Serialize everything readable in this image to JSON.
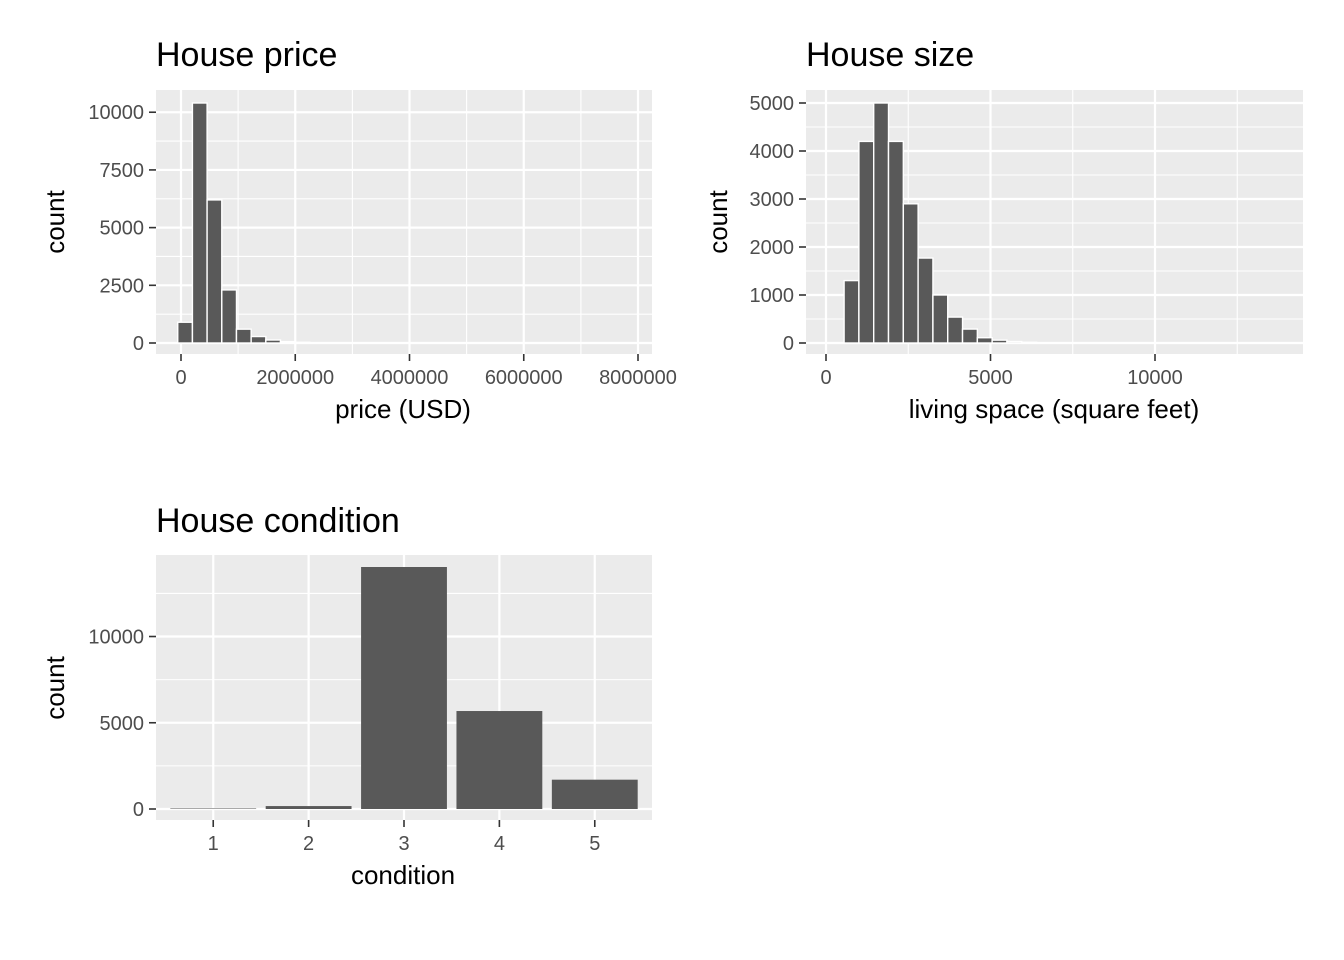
{
  "chart_data": [
    {
      "id": "price",
      "type": "bar",
      "title": "House price",
      "xlabel": "price (USD)",
      "ylabel": "count",
      "xlim": [
        -400000,
        8000000
      ],
      "ylim": [
        0,
        10400
      ],
      "x_ticks": [
        0,
        2000000,
        4000000,
        6000000,
        8000000
      ],
      "x_tick_labels": [
        "0",
        "2000000",
        "4000000",
        "6000000",
        "8000000"
      ],
      "y_ticks": [
        0,
        2500,
        5000,
        7500,
        10000
      ],
      "y_tick_labels": [
        "0",
        "2500",
        "5000",
        "7500",
        "10000"
      ],
      "grid": true,
      "bins": [
        {
          "x0": -57000,
          "x1": 200000,
          "count": 900
        },
        {
          "x0": 200000,
          "x1": 457000,
          "count": 10400
        },
        {
          "x0": 457000,
          "x1": 714000,
          "count": 6200
        },
        {
          "x0": 714000,
          "x1": 971000,
          "count": 2300
        },
        {
          "x0": 971000,
          "x1": 1228000,
          "count": 600
        },
        {
          "x0": 1228000,
          "x1": 1485000,
          "count": 280
        },
        {
          "x0": 1485000,
          "x1": 1742000,
          "count": 130
        },
        {
          "x0": 1742000,
          "x1": 1999000,
          "count": 60
        },
        {
          "x0": 1999000,
          "x1": 2256000,
          "count": 30
        },
        {
          "x0": 2256000,
          "x1": 2513000,
          "count": 15
        },
        {
          "x0": 2513000,
          "x1": 2770000,
          "count": 8
        },
        {
          "x0": 2770000,
          "x1": 3027000,
          "count": 5
        },
        {
          "x0": 3027000,
          "x1": 3284000,
          "count": 3
        },
        {
          "x0": 3284000,
          "x1": 3541000,
          "count": 2
        },
        {
          "x0": 3541000,
          "x1": 3798000,
          "count": 1
        },
        {
          "x0": 3798000,
          "x1": 4055000,
          "count": 1
        },
        {
          "x0": 4055000,
          "x1": 4312000,
          "count": 1
        },
        {
          "x0": 4312000,
          "x1": 4569000,
          "count": 1
        },
        {
          "x0": 4569000,
          "x1": 4826000,
          "count": 0
        },
        {
          "x0": 4826000,
          "x1": 5083000,
          "count": 1
        },
        {
          "x0": 5083000,
          "x1": 5340000,
          "count": 1
        },
        {
          "x0": 5340000,
          "x1": 5597000,
          "count": 0
        },
        {
          "x0": 5597000,
          "x1": 5854000,
          "count": 0
        },
        {
          "x0": 5854000,
          "x1": 6111000,
          "count": 0
        },
        {
          "x0": 6111000,
          "x1": 6368000,
          "count": 0
        },
        {
          "x0": 6368000,
          "x1": 6625000,
          "count": 0
        },
        {
          "x0": 6625000,
          "x1": 6882000,
          "count": 1
        },
        {
          "x0": 6882000,
          "x1": 7139000,
          "count": 0
        },
        {
          "x0": 7139000,
          "x1": 7396000,
          "count": 0
        },
        {
          "x0": 7396000,
          "x1": 7653000,
          "count": 0
        },
        {
          "x0": 7653000,
          "x1": 7910000,
          "count": 1
        }
      ]
    },
    {
      "id": "size",
      "type": "bar",
      "title": "House size",
      "xlabel": "living space (square feet)",
      "ylabel": "count",
      "xlim": [
        -400,
        14000
      ],
      "ylim": [
        0,
        5000
      ],
      "x_ticks": [
        0,
        5000,
        10000
      ],
      "x_tick_labels": [
        "0",
        "5000",
        "10000"
      ],
      "y_ticks": [
        0,
        1000,
        2000,
        3000,
        4000,
        5000
      ],
      "y_tick_labels": [
        "0",
        "1000",
        "2000",
        "3000",
        "4000",
        "5000"
      ],
      "grid": true,
      "bins": [
        {
          "x0": 550,
          "x1": 1000,
          "count": 1300
        },
        {
          "x0": 1000,
          "x1": 1450,
          "count": 4200
        },
        {
          "x0": 1450,
          "x1": 1900,
          "count": 5000
        },
        {
          "x0": 1900,
          "x1": 2350,
          "count": 4200
        },
        {
          "x0": 2350,
          "x1": 2800,
          "count": 2900
        },
        {
          "x0": 2800,
          "x1": 3250,
          "count": 1770
        },
        {
          "x0": 3250,
          "x1": 3700,
          "count": 1000
        },
        {
          "x0": 3700,
          "x1": 4150,
          "count": 540
        },
        {
          "x0": 4150,
          "x1": 4600,
          "count": 290
        },
        {
          "x0": 4600,
          "x1": 5050,
          "count": 110
        },
        {
          "x0": 5050,
          "x1": 5500,
          "count": 60
        },
        {
          "x0": 5500,
          "x1": 5950,
          "count": 30
        },
        {
          "x0": 5950,
          "x1": 6400,
          "count": 15
        },
        {
          "x0": 6400,
          "x1": 6850,
          "count": 8
        },
        {
          "x0": 6850,
          "x1": 7300,
          "count": 5
        },
        {
          "x0": 7300,
          "x1": 7750,
          "count": 3
        },
        {
          "x0": 7750,
          "x1": 8200,
          "count": 2
        },
        {
          "x0": 8200,
          "x1": 8650,
          "count": 1
        },
        {
          "x0": 8650,
          "x1": 9100,
          "count": 1
        },
        {
          "x0": 9100,
          "x1": 9550,
          "count": 1
        },
        {
          "x0": 9550,
          "x1": 10000,
          "count": 1
        },
        {
          "x0": 10000,
          "x1": 10450,
          "count": 0
        },
        {
          "x0": 10450,
          "x1": 10900,
          "count": 0
        },
        {
          "x0": 10900,
          "x1": 11350,
          "count": 0
        },
        {
          "x0": 11350,
          "x1": 11800,
          "count": 0
        },
        {
          "x0": 11800,
          "x1": 12250,
          "count": 0
        },
        {
          "x0": 12250,
          "x1": 12700,
          "count": 0
        },
        {
          "x0": 12700,
          "x1": 13150,
          "count": 0
        },
        {
          "x0": 13150,
          "x1": 13600,
          "count": 1
        }
      ]
    },
    {
      "id": "condition",
      "type": "bar",
      "title": "House condition",
      "xlabel": "condition",
      "ylabel": "count",
      "categories": [
        "1",
        "2",
        "3",
        "4",
        "5"
      ],
      "values": [
        30,
        170,
        14030,
        5680,
        1700
      ],
      "ylim": [
        0,
        14030
      ],
      "y_ticks": [
        0,
        5000,
        10000
      ],
      "y_tick_labels": [
        "0",
        "5000",
        "10000"
      ],
      "grid": true
    }
  ],
  "colors": {
    "panel_background": "#ebebeb",
    "grid_major": "#ffffff",
    "bar_fill": "#595959",
    "bar_outline": "#ffffff",
    "tick_text": "#4d4d4d",
    "tick_mark": "#333333",
    "title_text": "#000000"
  }
}
